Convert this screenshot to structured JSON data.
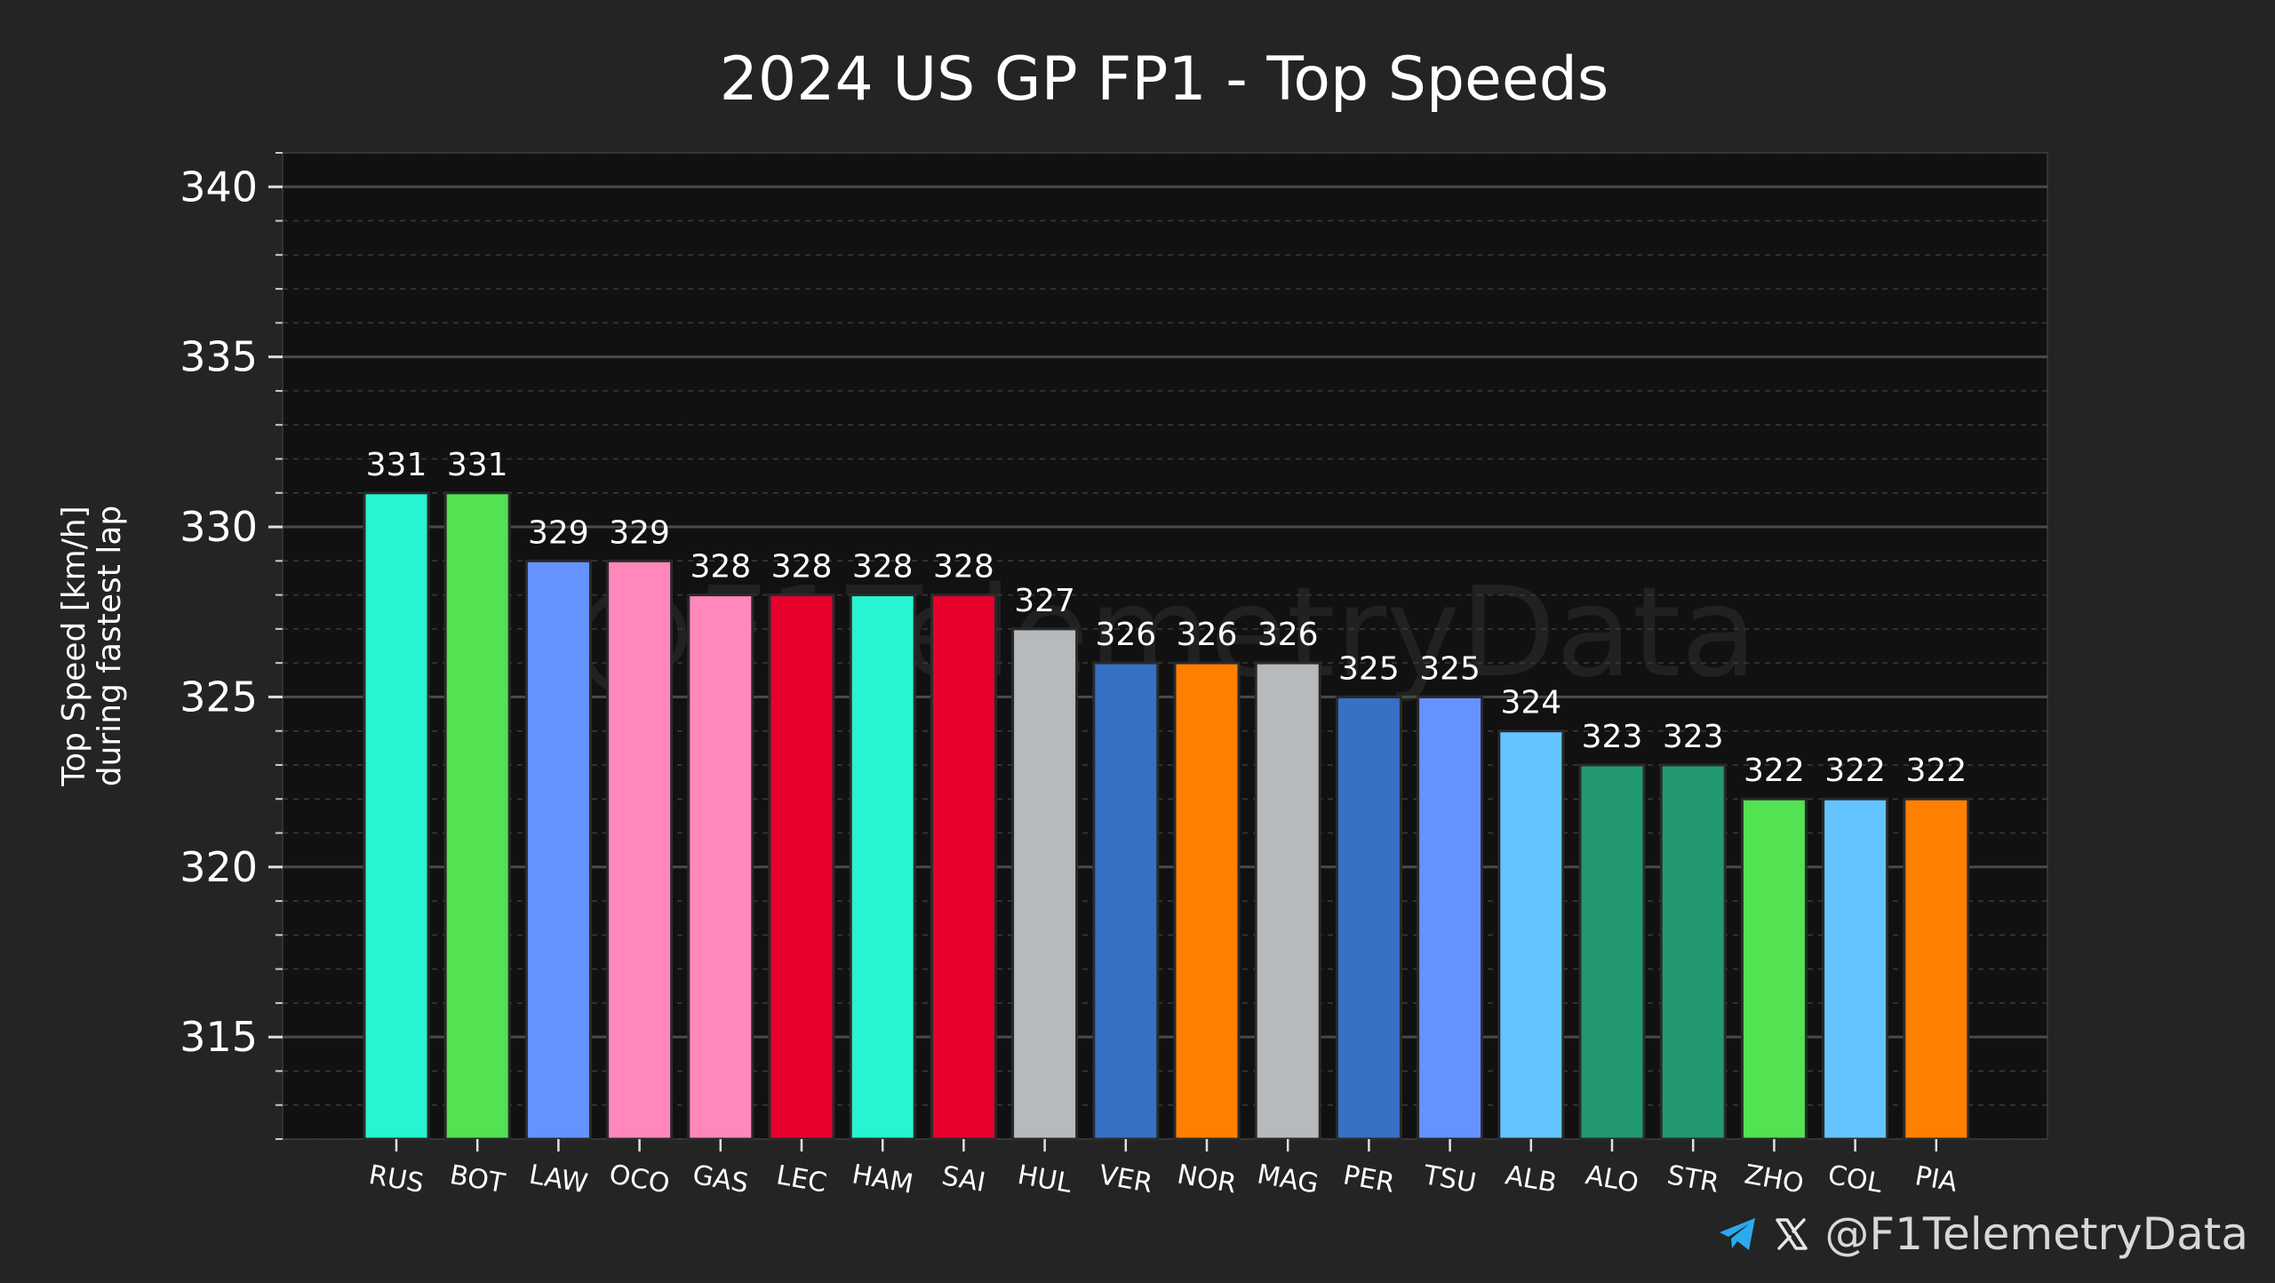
{
  "chart_data": {
    "type": "bar",
    "title": "2024 US GP FP1 - Top Speeds",
    "ylabel_line1": "Top Speed [km/h]",
    "ylabel_line2": "during fastest lap",
    "xlabel": "",
    "ylim": [
      312,
      341
    ],
    "yticks": [
      315,
      320,
      325,
      330,
      335,
      340
    ],
    "ytick_labels": [
      "315",
      "320",
      "325",
      "330",
      "335",
      "340"
    ],
    "categories": [
      "RUS",
      "BOT",
      "LAW",
      "OCO",
      "GAS",
      "LEC",
      "HAM",
      "SAI",
      "HUL",
      "VER",
      "NOR",
      "MAG",
      "PER",
      "TSU",
      "ALB",
      "ALO",
      "STR",
      "ZHO",
      "COL",
      "PIA"
    ],
    "values": [
      331,
      331,
      329,
      329,
      328,
      328,
      328,
      328,
      327,
      326,
      326,
      326,
      325,
      325,
      324,
      323,
      323,
      322,
      322,
      322
    ],
    "value_labels": [
      "331",
      "331",
      "329",
      "329",
      "328",
      "328",
      "328",
      "328",
      "327",
      "326",
      "326",
      "326",
      "325",
      "325",
      "324",
      "323",
      "323",
      "322",
      "322",
      "322"
    ],
    "colors": [
      "#27F4D2",
      "#52E252",
      "#6692FF",
      "#FF87BC",
      "#FF87BC",
      "#E8002D",
      "#27F4D2",
      "#E8002D",
      "#B6BABD",
      "#3671C6",
      "#FF8000",
      "#B6BABD",
      "#3671C6",
      "#6692FF",
      "#64C4FF",
      "#229971",
      "#229971",
      "#52E252",
      "#64C4FF",
      "#FF8000"
    ],
    "grid": true,
    "watermark": "@F1TelemetryData"
  },
  "footer": {
    "telegram_icon": "telegram-icon",
    "x_icon": "x-logo-icon",
    "handle": "@F1TelemetryData"
  },
  "colors": {
    "background": "#242424",
    "plot_background": "#111111",
    "text": "#ffffff",
    "telegram": "#2AABEE"
  }
}
